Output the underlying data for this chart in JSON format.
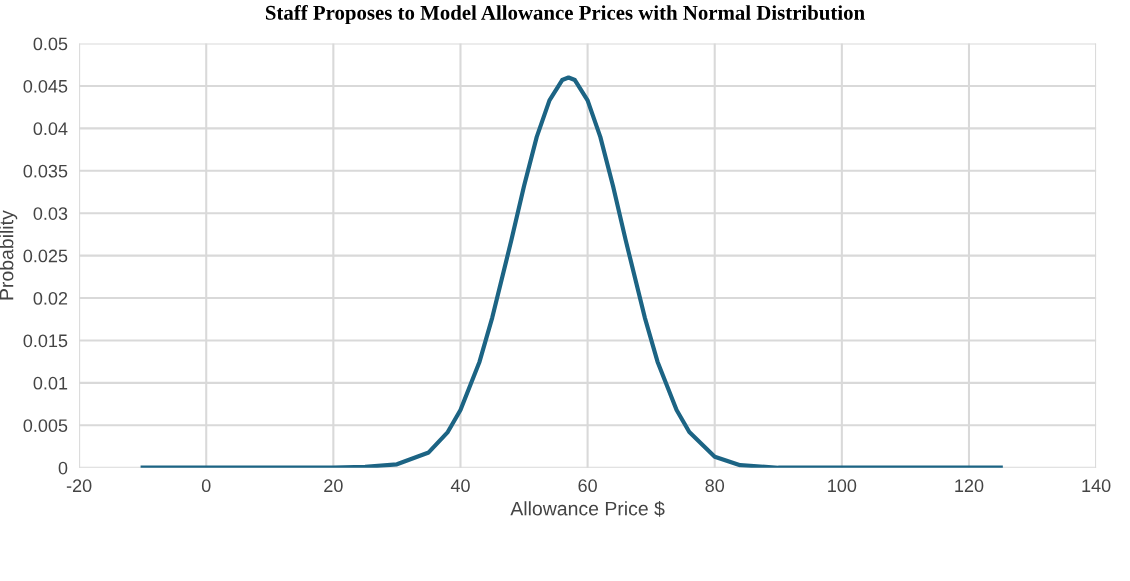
{
  "chart_data": {
    "type": "line",
    "title": "Staff Proposes to Model Allowance Prices with Normal Distribution",
    "xlabel": "Allowance Price $",
    "ylabel": "Probability",
    "x": [
      -10,
      0,
      10,
      20,
      25,
      30,
      35,
      38,
      40,
      43,
      45,
      48,
      50,
      52,
      54,
      56,
      57,
      58,
      60,
      62,
      64,
      66,
      69,
      71,
      74,
      76,
      80,
      84,
      90,
      100,
      110,
      125
    ],
    "series": [
      {
        "color": "#1c6484",
        "values": [
          0,
          0,
          0,
          0,
          0.0001,
          0.0004,
          0.0018,
          0.0042,
          0.0068,
          0.0125,
          0.0177,
          0.0268,
          0.0332,
          0.039,
          0.0433,
          0.0457,
          0.046,
          0.0457,
          0.0433,
          0.039,
          0.0332,
          0.0268,
          0.0177,
          0.0125,
          0.0068,
          0.0042,
          0.0013,
          0.0003,
          0,
          0,
          0,
          0
        ]
      }
    ],
    "xlim": [
      -20,
      140
    ],
    "xticks": [
      -20,
      0,
      20,
      40,
      60,
      80,
      100,
      120,
      140
    ],
    "ylim": [
      0,
      0.05
    ],
    "yticks": [
      0,
      0.005,
      0.01,
      0.015,
      0.02,
      0.025,
      0.03,
      0.035,
      0.04,
      0.045,
      0.05
    ],
    "grid": true,
    "legend": false,
    "marker": "none",
    "line_style": "solid"
  }
}
